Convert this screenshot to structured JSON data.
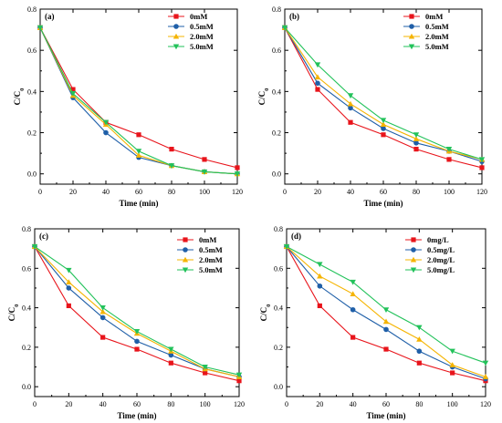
{
  "chart_data": [
    {
      "type": "line",
      "panel_label": "(a)",
      "xlabel": "Time (min)",
      "ylabel": "C/C",
      "ylabel_sub": "0",
      "xlim": [
        0,
        120
      ],
      "ylim": [
        -0.05,
        0.8
      ],
      "xticks": [
        0,
        20,
        40,
        60,
        80,
        100,
        120
      ],
      "yticks": [
        0.0,
        0.2,
        0.4,
        0.6,
        0.8
      ],
      "legend_position": "top-right",
      "x": [
        0,
        20,
        40,
        60,
        80,
        100,
        120
      ],
      "series": [
        {
          "name": "0mM",
          "color": "#e8141b",
          "marker": "square",
          "values": [
            0.71,
            0.41,
            0.25,
            0.19,
            0.12,
            0.07,
            0.03
          ]
        },
        {
          "name": "0.5mM",
          "color": "#1f5fa8",
          "marker": "circle",
          "values": [
            0.71,
            0.37,
            0.2,
            0.08,
            0.04,
            0.01,
            0.0
          ]
        },
        {
          "name": "2.0mM",
          "color": "#f5b400",
          "marker": "triangle-up",
          "values": [
            0.71,
            0.38,
            0.24,
            0.09,
            0.04,
            0.01,
            0.0
          ]
        },
        {
          "name": "5.0mM",
          "color": "#22c25a",
          "marker": "triangle-down",
          "values": [
            0.71,
            0.39,
            0.25,
            0.11,
            0.04,
            0.01,
            0.0
          ]
        }
      ]
    },
    {
      "type": "line",
      "panel_label": "(b)",
      "xlabel": "Time (min)",
      "ylabel": "C/C",
      "ylabel_sub": "0",
      "xlim": [
        0,
        120
      ],
      "ylim": [
        -0.05,
        0.8
      ],
      "xticks": [
        0,
        20,
        40,
        60,
        80,
        100,
        120
      ],
      "yticks": [
        0.0,
        0.2,
        0.4,
        0.6,
        0.8
      ],
      "legend_position": "top-right",
      "x": [
        0,
        20,
        40,
        60,
        80,
        100,
        120
      ],
      "series": [
        {
          "name": "0mM",
          "color": "#e8141b",
          "marker": "square",
          "values": [
            0.71,
            0.41,
            0.25,
            0.19,
            0.12,
            0.07,
            0.03
          ]
        },
        {
          "name": "0.5mM",
          "color": "#1f5fa8",
          "marker": "circle",
          "values": [
            0.71,
            0.44,
            0.32,
            0.22,
            0.15,
            0.11,
            0.06
          ]
        },
        {
          "name": "2.0mM",
          "color": "#f5b400",
          "marker": "triangle-up",
          "values": [
            0.71,
            0.47,
            0.34,
            0.24,
            0.17,
            0.11,
            0.07
          ]
        },
        {
          "name": "5.0mM",
          "color": "#22c25a",
          "marker": "triangle-down",
          "values": [
            0.71,
            0.53,
            0.38,
            0.26,
            0.19,
            0.12,
            0.07
          ]
        }
      ]
    },
    {
      "type": "line",
      "panel_label": "(c)",
      "xlabel": "Time (min)",
      "ylabel": "C/C",
      "ylabel_sub": "0",
      "xlim": [
        0,
        120
      ],
      "ylim": [
        -0.05,
        0.8
      ],
      "xticks": [
        0,
        20,
        40,
        60,
        80,
        100,
        120
      ],
      "yticks": [
        0.0,
        0.2,
        0.4,
        0.6,
        0.8
      ],
      "legend_position": "top-right",
      "x": [
        0,
        20,
        40,
        60,
        80,
        100,
        120
      ],
      "series": [
        {
          "name": "0mM",
          "color": "#e8141b",
          "marker": "square",
          "values": [
            0.71,
            0.41,
            0.25,
            0.19,
            0.12,
            0.07,
            0.03
          ]
        },
        {
          "name": "0.5mM",
          "color": "#1f5fa8",
          "marker": "circle",
          "values": [
            0.71,
            0.5,
            0.35,
            0.23,
            0.16,
            0.09,
            0.05
          ]
        },
        {
          "name": "2.0mM",
          "color": "#f5b400",
          "marker": "triangle-up",
          "values": [
            0.71,
            0.53,
            0.38,
            0.27,
            0.18,
            0.09,
            0.05
          ]
        },
        {
          "name": "5.0mM",
          "color": "#22c25a",
          "marker": "triangle-down",
          "values": [
            0.71,
            0.59,
            0.4,
            0.28,
            0.19,
            0.1,
            0.06
          ]
        }
      ]
    },
    {
      "type": "line",
      "panel_label": "(d)",
      "xlabel": "Time (min)",
      "ylabel": "C/C",
      "ylabel_sub": "0",
      "xlim": [
        0,
        120
      ],
      "ylim": [
        -0.05,
        0.8
      ],
      "xticks": [
        0,
        20,
        40,
        60,
        80,
        100,
        120
      ],
      "yticks": [
        0.0,
        0.2,
        0.4,
        0.6,
        0.8
      ],
      "legend_position": "top-right",
      "x": [
        0,
        20,
        40,
        60,
        80,
        100,
        120
      ],
      "series": [
        {
          "name": "0mg/L",
          "color": "#e8141b",
          "marker": "square",
          "values": [
            0.71,
            0.41,
            0.25,
            0.19,
            0.12,
            0.07,
            0.03
          ]
        },
        {
          "name": "0.5mg/L",
          "color": "#1f5fa8",
          "marker": "circle",
          "values": [
            0.71,
            0.51,
            0.39,
            0.29,
            0.18,
            0.1,
            0.04
          ]
        },
        {
          "name": "2.0mg/L",
          "color": "#f5b400",
          "marker": "triangle-up",
          "values": [
            0.71,
            0.56,
            0.47,
            0.33,
            0.24,
            0.11,
            0.05
          ]
        },
        {
          "name": "5.0mg/L",
          "color": "#22c25a",
          "marker": "triangle-down",
          "values": [
            0.71,
            0.62,
            0.53,
            0.39,
            0.3,
            0.18,
            0.12
          ]
        }
      ]
    }
  ]
}
